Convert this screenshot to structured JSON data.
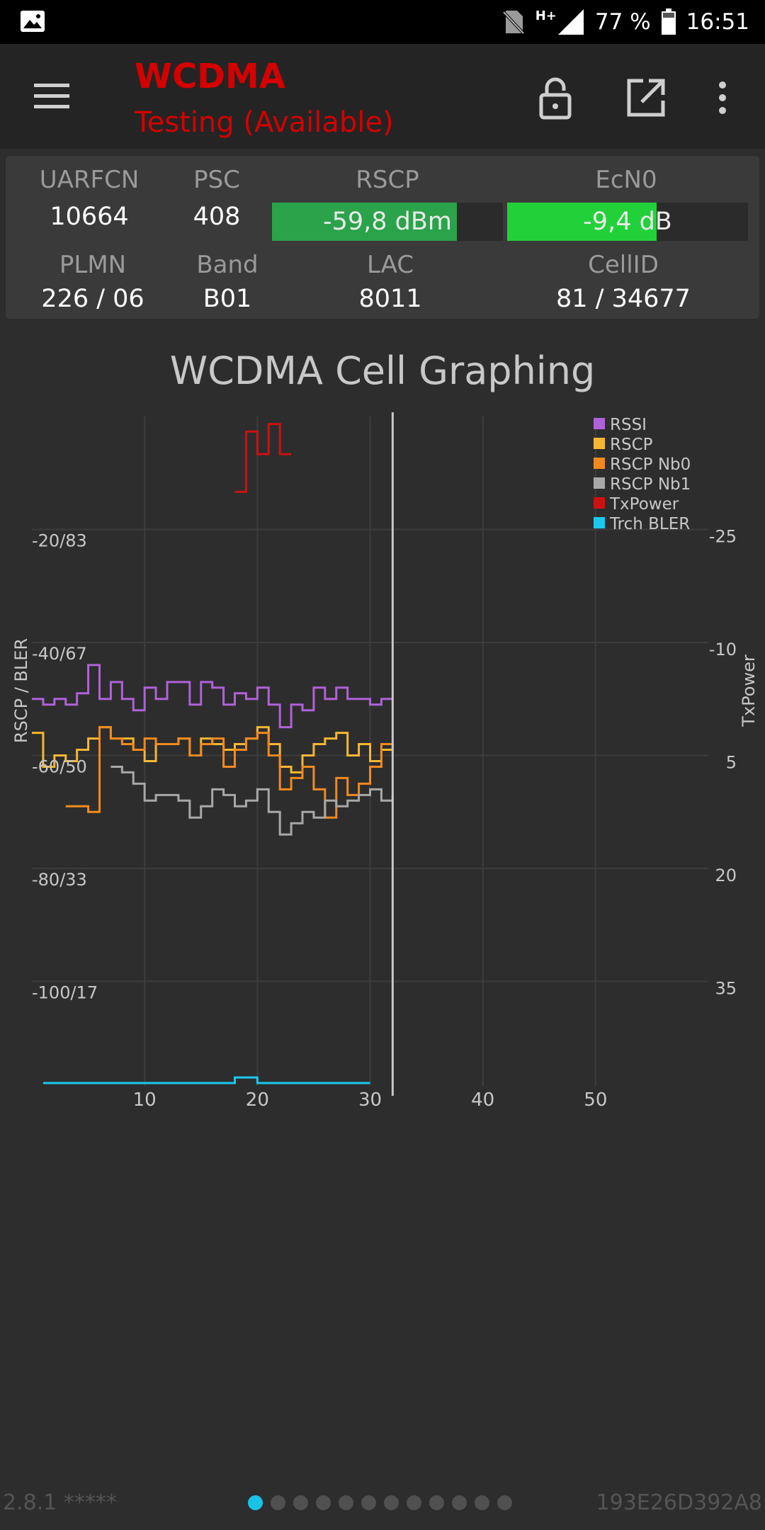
{
  "status_bar": {
    "battery": "77 %",
    "time": "16:51",
    "network": "H+",
    "icons": [
      "image-icon",
      "no-sim-icon",
      "signal-icon",
      "battery-icon"
    ]
  },
  "toolbar": {
    "title": "WCDMA",
    "subtitle": "Testing (Available)",
    "icons": [
      "menu-icon",
      "lock-icon",
      "open-external-icon",
      "more-vert-icon"
    ],
    "accent": "#d40000"
  },
  "info": {
    "uarfcn": {
      "label": "UARFCN",
      "value": "10664"
    },
    "psc": {
      "label": "PSC",
      "value": "408"
    },
    "rscp": {
      "label": "RSCP",
      "value": "-59,8 dBm",
      "fill": 0.8,
      "color": "#2aa34a"
    },
    "ecn0": {
      "label": "EcN0",
      "value": "-9,4 dB",
      "fill": 0.62,
      "color": "#22d13a"
    },
    "plmn": {
      "label": "PLMN",
      "value": "226 / 06"
    },
    "band": {
      "label": "Band",
      "value": "B01"
    },
    "lac": {
      "label": "LAC",
      "value": "8011"
    },
    "cellid": {
      "label": "CellID",
      "value": "81 / 34677"
    }
  },
  "chart_title": "WCDMA Cell Graphing",
  "chart_data": {
    "type": "line",
    "title": "WCDMA Cell Graphing",
    "xlabel": "",
    "ylabel": "RSCP / BLER",
    "y2label": "TxPower",
    "xlim": [
      0,
      60
    ],
    "ylim": [
      -120,
      0
    ],
    "y2lim": [
      50,
      -40
    ],
    "x_ticks": [
      "10",
      "20",
      "30",
      "40",
      "50"
    ],
    "x_tick_values": [
      10,
      20,
      30,
      40,
      50
    ],
    "y_ticks": [
      "-20/83",
      "-40/67",
      "-60/50",
      "-80/33",
      "-100/17"
    ],
    "y_tick_values": [
      -20,
      -40,
      -60,
      -80,
      -100
    ],
    "y2_ticks": [
      "-25",
      "-10",
      "5",
      "20",
      "35"
    ],
    "y2_tick_values": [
      -25,
      -10,
      5,
      20,
      35
    ],
    "cursor_x": 32,
    "grid": true,
    "legend_position": "top-right",
    "series": [
      {
        "name": "RSSI",
        "color": "#b062d8",
        "x": [
          0,
          1,
          2,
          3,
          4,
          5,
          6,
          7,
          8,
          9,
          10,
          11,
          12,
          13,
          14,
          15,
          16,
          17,
          18,
          19,
          20,
          21,
          22,
          23,
          24,
          25,
          26,
          27,
          28,
          29,
          30,
          31,
          32
        ],
        "y": [
          -50,
          -51,
          -50,
          -51,
          -49,
          -44,
          -50,
          -47,
          -50,
          -52,
          -48,
          -50,
          -47,
          -47,
          -51,
          -47,
          -48,
          -51,
          -49,
          -50,
          -48,
          -51,
          -55,
          -51,
          -52,
          -48,
          -50,
          -48,
          -50,
          -50,
          -51,
          -50,
          -50
        ]
      },
      {
        "name": "RSCP",
        "color": "#f5b733",
        "x": [
          0,
          1,
          2,
          3,
          4,
          5,
          6,
          7,
          8,
          9,
          10,
          11,
          12,
          13,
          14,
          15,
          16,
          17,
          18,
          19,
          20,
          21,
          22,
          23,
          24,
          25,
          26,
          27,
          28,
          29,
          30,
          31,
          32
        ],
        "y": [
          -56,
          -62,
          -60,
          -61,
          -59,
          -57,
          -55,
          -57,
          -57,
          -59,
          -61,
          -58,
          -58,
          -57,
          -60,
          -57,
          -58,
          -59,
          -58,
          -57,
          -55,
          -58,
          -62,
          -63,
          -60,
          -58,
          -57,
          -56,
          -60,
          -58,
          -61,
          -59,
          -59
        ]
      },
      {
        "name": "RSCP Nb0",
        "color": "#f08a1f",
        "x": [
          3,
          4,
          5,
          6,
          7,
          8,
          9,
          10,
          11,
          12,
          13,
          14,
          15,
          16,
          17,
          18,
          19,
          20,
          21,
          22,
          23,
          24,
          25,
          26,
          27,
          28,
          29,
          30,
          31,
          32
        ],
        "y": [
          -69,
          -69,
          -70,
          -55,
          -57,
          -58,
          -59,
          -57,
          -58,
          -58,
          -57,
          -60,
          -58,
          -57,
          -62,
          -59,
          -57,
          -56,
          -60,
          -66,
          -64,
          -62,
          -66,
          -71,
          -64,
          -67,
          -65,
          -62,
          -58,
          -59
        ]
      },
      {
        "name": "RSCP Nb1",
        "color": "#a8a8a8",
        "x": [
          7,
          8,
          9,
          10,
          11,
          12,
          13,
          14,
          15,
          16,
          17,
          18,
          19,
          20,
          21,
          22,
          23,
          24,
          25,
          26,
          27,
          28,
          29,
          30,
          31,
          32
        ],
        "y": [
          -62,
          -63,
          -65,
          -68,
          -67,
          -67,
          -68,
          -71,
          -69,
          -66,
          -67,
          -69,
          -68,
          -66,
          -70,
          -74,
          -72,
          -70,
          -71,
          -68,
          -69,
          -68,
          -67,
          -66,
          -68,
          -67
        ]
      },
      {
        "name": "TxPower",
        "color": "#cc1111",
        "x": [
          18,
          19,
          20,
          21,
          22,
          23
        ],
        "y2": [
          -30,
          -38,
          -35,
          -39,
          -35,
          -35
        ]
      },
      {
        "name": "Trch BLER",
        "color": "#1cc8ee",
        "x": [
          1,
          5,
          18,
          19,
          20,
          21,
          22,
          23,
          24,
          25,
          26,
          27,
          28,
          29,
          30
        ],
        "y": [
          -118,
          -118,
          -117,
          -117,
          -118,
          -118,
          -118,
          -118,
          -118,
          -118,
          -118,
          -118,
          -118,
          -118,
          -118
        ]
      }
    ]
  },
  "footer": {
    "version": "2.8.1 *****",
    "device_id": "193E26D392A8",
    "pages_total": 12,
    "page_active": 1
  }
}
